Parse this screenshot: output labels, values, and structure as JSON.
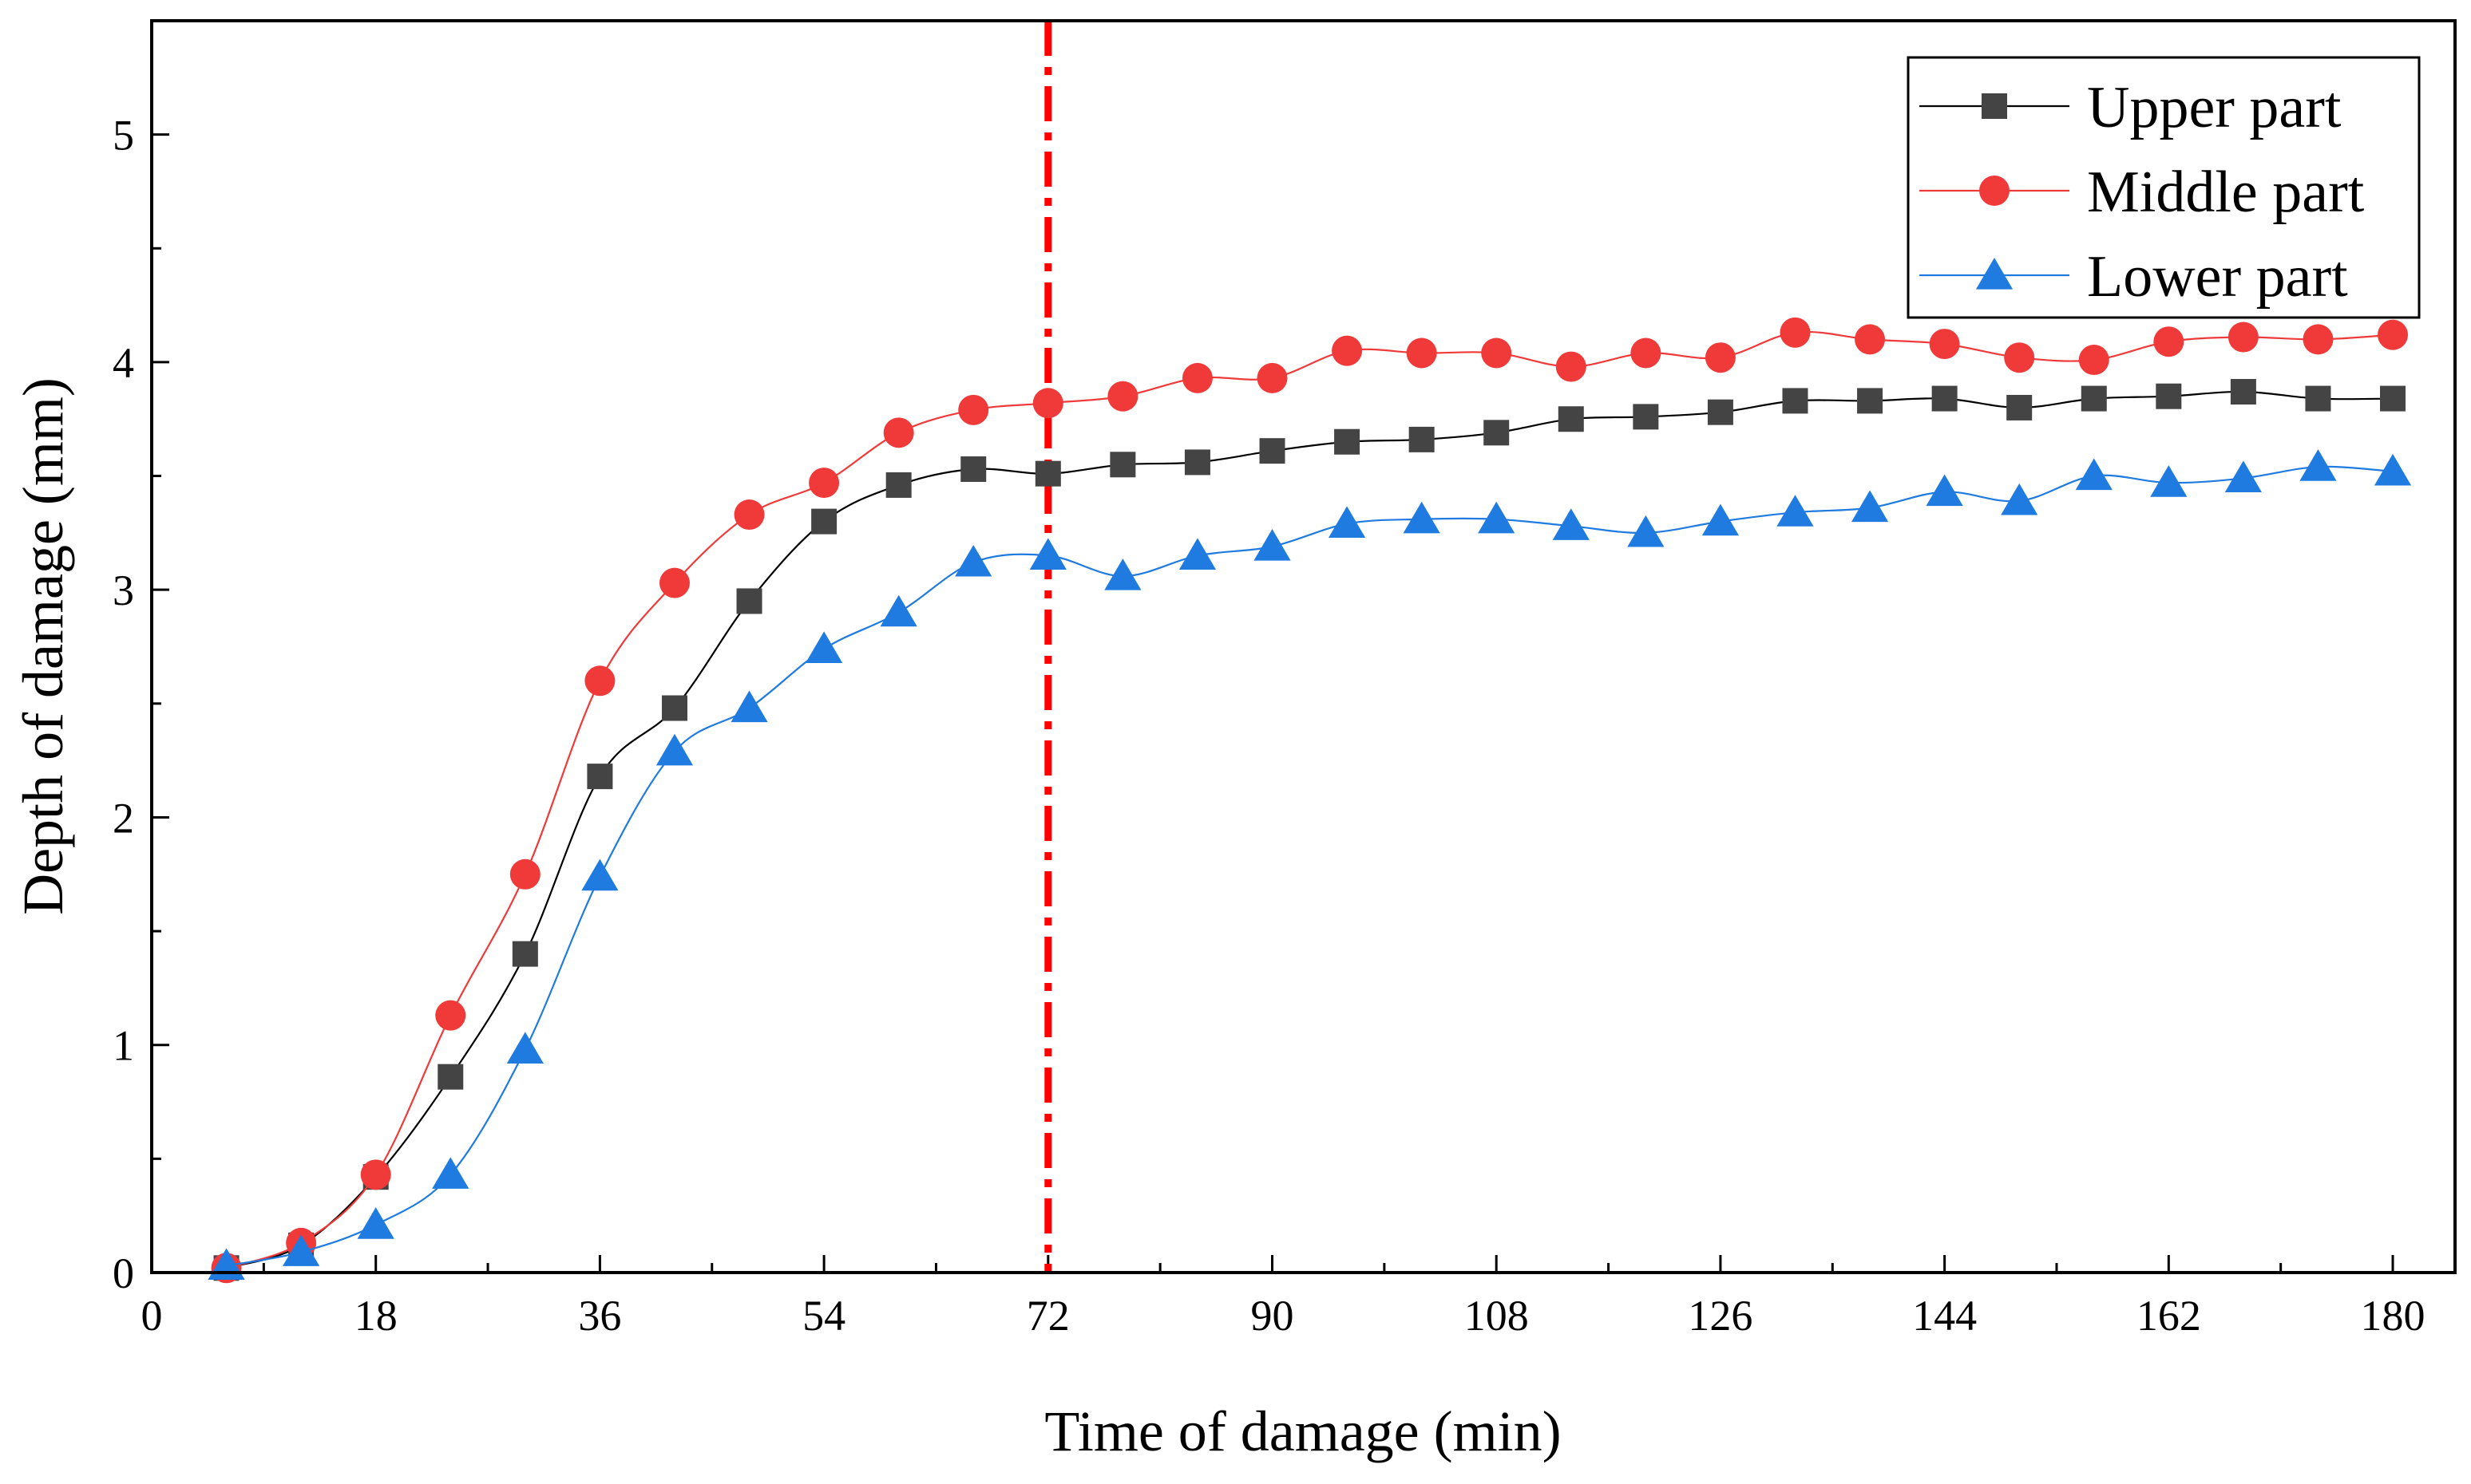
{
  "chart_data": {
    "type": "line",
    "title": "",
    "xlabel": "Time of damage (min)",
    "ylabel": "Depth of damage (mm)",
    "xlim": [
      0,
      185
    ],
    "ylim": [
      0,
      5.5
    ],
    "xticks": [
      0,
      18,
      36,
      54,
      72,
      90,
      108,
      126,
      144,
      162,
      180
    ],
    "yticks": [
      0,
      1,
      2,
      3,
      4,
      5
    ],
    "x_minor_step": 9,
    "y_minor_step": 0.5,
    "grid": false,
    "legend_position": "top-right",
    "reference_line": {
      "x": 72,
      "style": "dash-dot",
      "color": "#ff0000"
    },
    "x": [
      6,
      12,
      18,
      24,
      30,
      36,
      42,
      48,
      54,
      60,
      66,
      72,
      78,
      84,
      90,
      96,
      102,
      108,
      114,
      120,
      126,
      132,
      138,
      144,
      150,
      156,
      162,
      168,
      174,
      180
    ],
    "series": [
      {
        "name": "Upper part",
        "marker": "square",
        "color": "#444444",
        "line_color": "#000000",
        "values": [
          0.02,
          0.12,
          0.42,
          0.86,
          1.4,
          2.18,
          2.48,
          2.95,
          3.3,
          3.46,
          3.53,
          3.51,
          3.55,
          3.56,
          3.61,
          3.65,
          3.66,
          3.69,
          3.75,
          3.76,
          3.78,
          3.83,
          3.83,
          3.84,
          3.8,
          3.84,
          3.85,
          3.87,
          3.84,
          3.84
        ]
      },
      {
        "name": "Middle part",
        "marker": "circle",
        "color": "#f03a3a",
        "line_color": "#f03a3a",
        "values": [
          0.02,
          0.13,
          0.43,
          1.13,
          1.75,
          2.6,
          3.03,
          3.33,
          3.47,
          3.69,
          3.79,
          3.82,
          3.85,
          3.93,
          3.93,
          4.05,
          4.04,
          4.04,
          3.98,
          4.04,
          4.02,
          4.13,
          4.1,
          4.08,
          4.02,
          4.01,
          4.09,
          4.11,
          4.1,
          4.12
        ]
      },
      {
        "name": "Lower part",
        "marker": "triangle",
        "color": "#1f7be0",
        "line_color": "#1f7be0",
        "values": [
          0.03,
          0.09,
          0.21,
          0.43,
          0.98,
          1.74,
          2.29,
          2.48,
          2.74,
          2.9,
          3.12,
          3.15,
          3.06,
          3.15,
          3.19,
          3.29,
          3.31,
          3.31,
          3.28,
          3.25,
          3.3,
          3.34,
          3.36,
          3.43,
          3.39,
          3.5,
          3.47,
          3.49,
          3.54,
          3.52
        ]
      }
    ]
  }
}
